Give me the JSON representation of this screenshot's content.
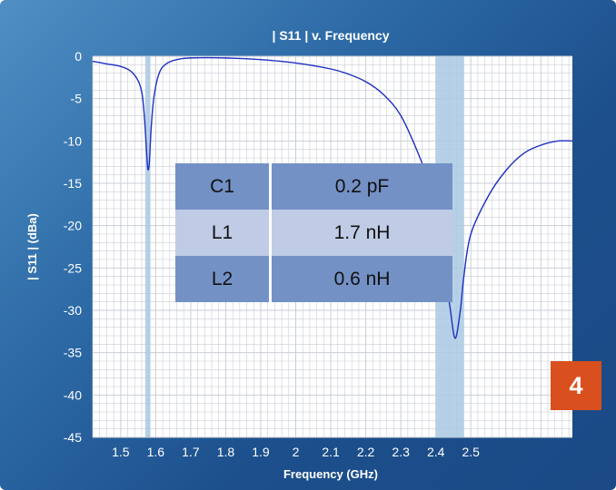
{
  "chart_data": {
    "type": "line",
    "title": "| S11 | v. Frequency",
    "xlabel": "Frequency (GHz)",
    "ylabel": "| S11 |  (dBa)",
    "xlim": [
      1.42,
      2.79
    ],
    "ylim": [
      -45,
      0
    ],
    "x_ticks": [
      1.5,
      1.6,
      1.7,
      1.8,
      1.9,
      2,
      2.1,
      2.2,
      2.3,
      2.4,
      2.5
    ],
    "x_tick_labels": [
      "1.5",
      "1.6",
      "1.7",
      "1.8",
      "1.9",
      "2",
      "2.1",
      "2.2",
      "2.3",
      "2.4",
      "2.5"
    ],
    "y_ticks": [
      0,
      -5,
      -10,
      -15,
      -20,
      -25,
      -30,
      -35,
      -40,
      -45
    ],
    "y_tick_labels": [
      "0",
      "-5",
      "-10",
      "-15",
      "-20",
      "-25",
      "-30",
      "-35",
      "-40",
      "-45"
    ],
    "grid": true,
    "highlight_bands": [
      [
        1.57,
        1.585
      ],
      [
        2.4,
        2.48
      ]
    ],
    "series": [
      {
        "color": "#1f2fbf",
        "points": [
          [
            1.42,
            -0.6
          ],
          [
            1.46,
            -0.9
          ],
          [
            1.5,
            -1.2
          ],
          [
            1.53,
            -1.8
          ],
          [
            1.55,
            -2.9
          ],
          [
            1.56,
            -4.2
          ],
          [
            1.565,
            -5.8
          ],
          [
            1.57,
            -8.5
          ],
          [
            1.575,
            -12.0
          ],
          [
            1.578,
            -13.4
          ],
          [
            1.582,
            -12.5
          ],
          [
            1.587,
            -8.5
          ],
          [
            1.595,
            -4.8
          ],
          [
            1.61,
            -2.0
          ],
          [
            1.63,
            -0.9
          ],
          [
            1.66,
            -0.4
          ],
          [
            1.7,
            -0.2
          ],
          [
            1.8,
            -0.2
          ],
          [
            1.9,
            -0.4
          ],
          [
            2.0,
            -0.8
          ],
          [
            2.1,
            -1.5
          ],
          [
            2.15,
            -2.1
          ],
          [
            2.2,
            -3.0
          ],
          [
            2.25,
            -4.5
          ],
          [
            2.3,
            -7.0
          ],
          [
            2.35,
            -11.5
          ],
          [
            2.38,
            -15.0
          ],
          [
            2.4,
            -19.0
          ],
          [
            2.42,
            -24.0
          ],
          [
            2.44,
            -29.5
          ],
          [
            2.455,
            -33.3
          ],
          [
            2.47,
            -30.0
          ],
          [
            2.48,
            -26.0
          ],
          [
            2.5,
            -21.0
          ],
          [
            2.55,
            -16.5
          ],
          [
            2.6,
            -13.5
          ],
          [
            2.65,
            -11.5
          ],
          [
            2.7,
            -10.5
          ],
          [
            2.75,
            -10.0
          ],
          [
            2.79,
            -10.0
          ]
        ]
      }
    ]
  },
  "table": {
    "rows": [
      {
        "label": "C1",
        "value": "0.2 pF"
      },
      {
        "label": "L1",
        "value": "1.7 nH"
      },
      {
        "label": "L2",
        "value": "0.6 nH"
      }
    ]
  },
  "badge": {
    "label": "4",
    "color": "#d94f1d"
  },
  "colors": {
    "plot_bg": "#ffffff",
    "grid": "#c9ced6",
    "band": "#a9c9e3",
    "curve": "#1f2fbf"
  }
}
